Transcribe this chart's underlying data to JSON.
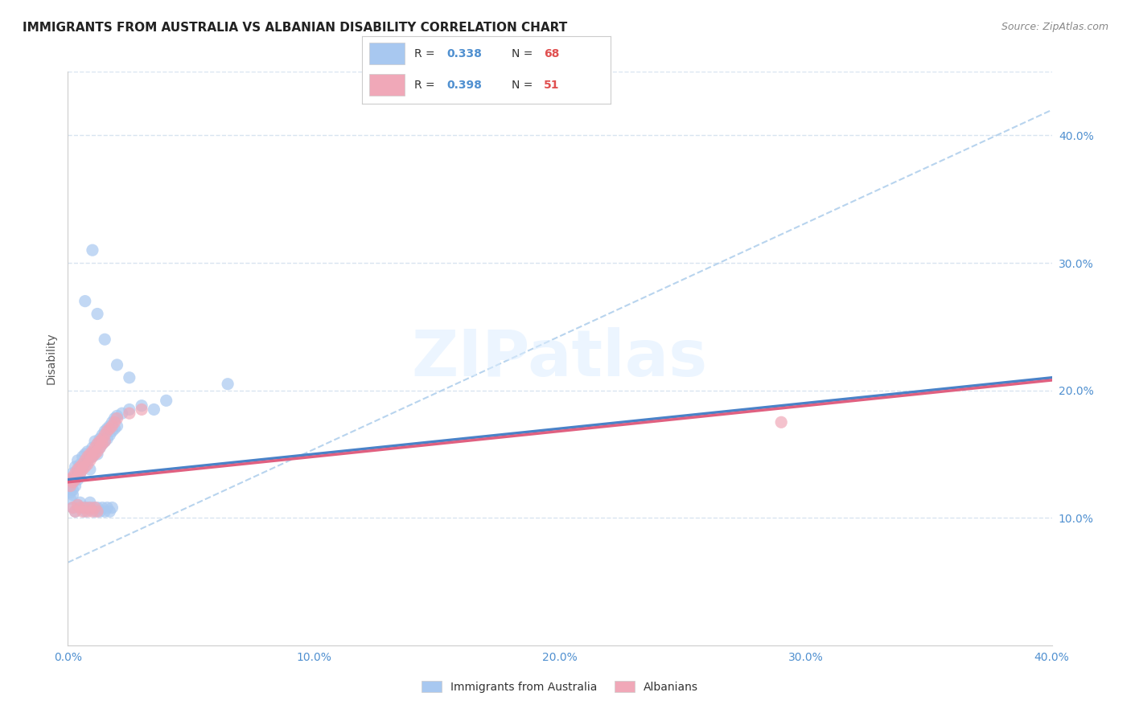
{
  "title": "IMMIGRANTS FROM AUSTRALIA VS ALBANIAN DISABILITY CORRELATION CHART",
  "source": "Source: ZipAtlas.com",
  "ylabel": "Disability",
  "xlim": [
    0.0,
    0.4
  ],
  "ylim": [
    0.0,
    0.45
  ],
  "xticks": [
    0.0,
    0.1,
    0.2,
    0.3,
    0.4
  ],
  "yticks": [
    0.1,
    0.2,
    0.3,
    0.4
  ],
  "xticklabels": [
    "0.0%",
    "10.0%",
    "20.0%",
    "30.0%",
    "40.0%"
  ],
  "yticklabels": [
    "10.0%",
    "20.0%",
    "30.0%",
    "40.0%"
  ],
  "blue_scatter": [
    [
      0.001,
      0.13
    ],
    [
      0.001,
      0.125
    ],
    [
      0.001,
      0.12
    ],
    [
      0.001,
      0.115
    ],
    [
      0.002,
      0.135
    ],
    [
      0.002,
      0.128
    ],
    [
      0.002,
      0.122
    ],
    [
      0.002,
      0.118
    ],
    [
      0.003,
      0.132
    ],
    [
      0.003,
      0.125
    ],
    [
      0.003,
      0.14
    ],
    [
      0.004,
      0.145
    ],
    [
      0.004,
      0.138
    ],
    [
      0.004,
      0.13
    ],
    [
      0.005,
      0.142
    ],
    [
      0.005,
      0.135
    ],
    [
      0.006,
      0.148
    ],
    [
      0.006,
      0.14
    ],
    [
      0.007,
      0.15
    ],
    [
      0.007,
      0.143
    ],
    [
      0.008,
      0.152
    ],
    [
      0.008,
      0.145
    ],
    [
      0.009,
      0.148
    ],
    [
      0.009,
      0.138
    ],
    [
      0.01,
      0.155
    ],
    [
      0.01,
      0.148
    ],
    [
      0.011,
      0.16
    ],
    [
      0.011,
      0.152
    ],
    [
      0.012,
      0.158
    ],
    [
      0.012,
      0.15
    ],
    [
      0.013,
      0.162
    ],
    [
      0.013,
      0.155
    ],
    [
      0.014,
      0.165
    ],
    [
      0.014,
      0.158
    ],
    [
      0.015,
      0.168
    ],
    [
      0.015,
      0.16
    ],
    [
      0.016,
      0.17
    ],
    [
      0.016,
      0.162
    ],
    [
      0.017,
      0.172
    ],
    [
      0.017,
      0.165
    ],
    [
      0.018,
      0.175
    ],
    [
      0.018,
      0.168
    ],
    [
      0.019,
      0.178
    ],
    [
      0.019,
      0.17
    ],
    [
      0.02,
      0.18
    ],
    [
      0.02,
      0.172
    ],
    [
      0.022,
      0.182
    ],
    [
      0.025,
      0.185
    ],
    [
      0.03,
      0.188
    ],
    [
      0.035,
      0.185
    ],
    [
      0.04,
      0.192
    ],
    [
      0.002,
      0.108
    ],
    [
      0.003,
      0.105
    ],
    [
      0.004,
      0.11
    ],
    [
      0.005,
      0.112
    ],
    [
      0.006,
      0.108
    ],
    [
      0.007,
      0.105
    ],
    [
      0.008,
      0.108
    ],
    [
      0.009,
      0.112
    ],
    [
      0.01,
      0.108
    ],
    [
      0.011,
      0.105
    ],
    [
      0.012,
      0.108
    ],
    [
      0.013,
      0.105
    ],
    [
      0.014,
      0.108
    ],
    [
      0.015,
      0.105
    ],
    [
      0.016,
      0.108
    ],
    [
      0.017,
      0.105
    ],
    [
      0.018,
      0.108
    ],
    [
      0.007,
      0.27
    ],
    [
      0.01,
      0.31
    ],
    [
      0.012,
      0.26
    ],
    [
      0.015,
      0.24
    ],
    [
      0.02,
      0.22
    ],
    [
      0.025,
      0.21
    ],
    [
      0.065,
      0.205
    ]
  ],
  "pink_scatter": [
    [
      0.001,
      0.13
    ],
    [
      0.001,
      0.125
    ],
    [
      0.002,
      0.132
    ],
    [
      0.002,
      0.128
    ],
    [
      0.003,
      0.135
    ],
    [
      0.003,
      0.13
    ],
    [
      0.004,
      0.138
    ],
    [
      0.004,
      0.132
    ],
    [
      0.005,
      0.14
    ],
    [
      0.005,
      0.135
    ],
    [
      0.006,
      0.142
    ],
    [
      0.006,
      0.138
    ],
    [
      0.007,
      0.145
    ],
    [
      0.007,
      0.14
    ],
    [
      0.008,
      0.148
    ],
    [
      0.008,
      0.142
    ],
    [
      0.009,
      0.15
    ],
    [
      0.009,
      0.145
    ],
    [
      0.01,
      0.152
    ],
    [
      0.01,
      0.148
    ],
    [
      0.011,
      0.155
    ],
    [
      0.011,
      0.15
    ],
    [
      0.012,
      0.158
    ],
    [
      0.012,
      0.152
    ],
    [
      0.013,
      0.16
    ],
    [
      0.013,
      0.155
    ],
    [
      0.014,
      0.162
    ],
    [
      0.014,
      0.158
    ],
    [
      0.015,
      0.165
    ],
    [
      0.015,
      0.16
    ],
    [
      0.016,
      0.168
    ],
    [
      0.017,
      0.17
    ],
    [
      0.018,
      0.172
    ],
    [
      0.019,
      0.175
    ],
    [
      0.02,
      0.178
    ],
    [
      0.025,
      0.182
    ],
    [
      0.03,
      0.185
    ],
    [
      0.002,
      0.108
    ],
    [
      0.003,
      0.105
    ],
    [
      0.004,
      0.11
    ],
    [
      0.005,
      0.108
    ],
    [
      0.006,
      0.105
    ],
    [
      0.007,
      0.108
    ],
    [
      0.008,
      0.105
    ],
    [
      0.009,
      0.108
    ],
    [
      0.01,
      0.105
    ],
    [
      0.011,
      0.108
    ],
    [
      0.012,
      0.105
    ],
    [
      0.29,
      0.175
    ]
  ],
  "blue_line": [
    [
      0.0,
      0.13
    ],
    [
      0.4,
      0.21
    ]
  ],
  "pink_line": [
    [
      0.0,
      0.128
    ],
    [
      0.4,
      0.208
    ]
  ],
  "dashed_line": [
    [
      0.0,
      0.065
    ],
    [
      0.4,
      0.42
    ]
  ],
  "scatter_color_blue": "#a8c8f0",
  "scatter_color_pink": "#f0a8b8",
  "line_color_blue": "#4a82c8",
  "line_color_pink": "#e06080",
  "dashed_line_color": "#b8d4ee",
  "background_color": "#ffffff",
  "grid_color": "#d8e4f0",
  "tick_color": "#5090d0",
  "title_fontsize": 11,
  "axis_label_fontsize": 10,
  "tick_fontsize": 10,
  "legend_R_color": "#5090d0",
  "legend_N_color_blue": "#e05050",
  "legend_N_color_pink": "#e05050"
}
